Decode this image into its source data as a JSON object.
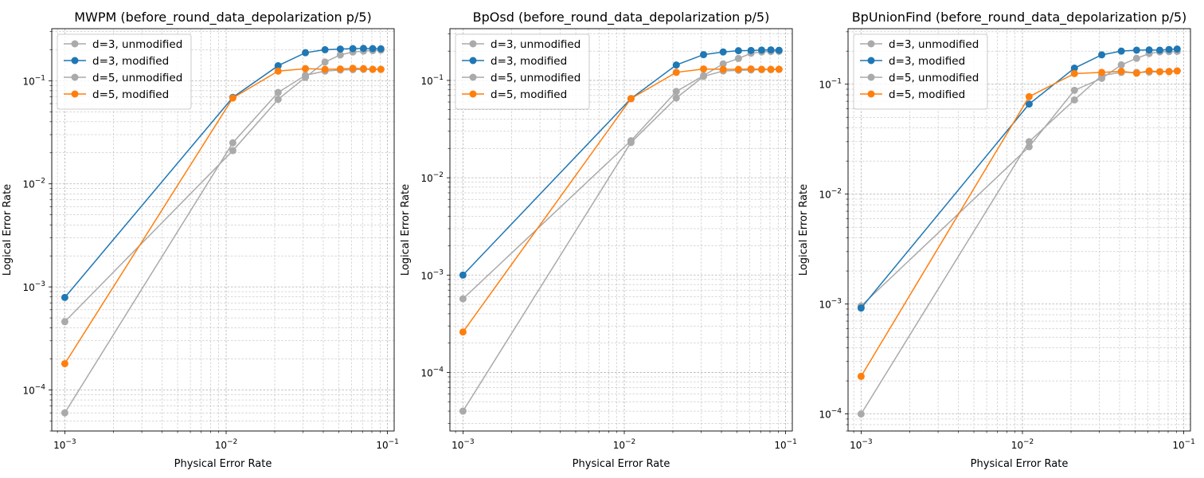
{
  "chart_data": [
    {
      "type": "line",
      "title": "MWPM (before_round_data_depolarization p/5)",
      "xlabel": "Physical Error Rate",
      "ylabel": "Logical Error Rate",
      "xscale": "log",
      "yscale": "log",
      "xlim": [
        0.00083,
        0.11
      ],
      "ylim": [
        4e-05,
        0.32
      ],
      "grid": "major and minor, dashed",
      "legend": "upper-left",
      "xticks": [
        {
          "value": 0.001,
          "base": "10",
          "exp": "−3"
        },
        {
          "value": 0.01,
          "base": "10",
          "exp": "−2"
        },
        {
          "value": 0.1,
          "base": "10",
          "exp": "−1"
        }
      ],
      "yticks": [
        {
          "value": 0.0001,
          "base": "10",
          "exp": "−4"
        },
        {
          "value": 0.001,
          "base": "10",
          "exp": "−3"
        },
        {
          "value": 0.01,
          "base": "10",
          "exp": "−2"
        },
        {
          "value": 0.1,
          "base": "10",
          "exp": "−1"
        }
      ],
      "x": [
        0.001,
        0.011,
        0.021,
        0.031,
        0.041,
        0.051,
        0.061,
        0.071,
        0.081,
        0.091
      ],
      "series": [
        {
          "name": "d=3, unmodified",
          "color": "#aaaaaa",
          "values": [
            0.00046,
            0.021,
            0.066,
            0.108,
            0.152,
            0.178,
            0.19,
            0.194,
            0.196,
            0.198
          ]
        },
        {
          "name": "d=3, modified",
          "color": "#1f77b4",
          "values": [
            0.00079,
            0.069,
            0.14,
            0.187,
            0.2,
            0.203,
            0.205,
            0.206,
            0.205,
            0.204
          ]
        },
        {
          "name": "d=5, unmodified",
          "color": "#aaaaaa",
          "values": [
            6e-05,
            0.025,
            0.077,
            0.113,
            0.124,
            0.127,
            0.128,
            0.129,
            0.129,
            0.129
          ]
        },
        {
          "name": "d=5, modified",
          "color": "#ff7f0e",
          "values": [
            0.00018,
            0.068,
            0.124,
            0.131,
            0.129,
            0.13,
            0.132,
            0.131,
            0.129,
            0.129
          ]
        }
      ]
    },
    {
      "type": "line",
      "title": "BpOsd (before_round_data_depolarization p/5)",
      "xlabel": "Physical Error Rate",
      "ylabel": "Logical Error Rate",
      "xscale": "log",
      "yscale": "log",
      "xlim": [
        0.00083,
        0.11
      ],
      "ylim": [
        2.5e-05,
        0.34
      ],
      "grid": "major and minor, dashed",
      "legend": "upper-left",
      "xticks": [
        {
          "value": 0.001,
          "base": "10",
          "exp": "−3"
        },
        {
          "value": 0.01,
          "base": "10",
          "exp": "−2"
        },
        {
          "value": 0.1,
          "base": "10",
          "exp": "−1"
        }
      ],
      "yticks": [
        {
          "value": 0.0001,
          "base": "10",
          "exp": "−4"
        },
        {
          "value": 0.001,
          "base": "10",
          "exp": "−3"
        },
        {
          "value": 0.01,
          "base": "10",
          "exp": "−2"
        },
        {
          "value": 0.1,
          "base": "10",
          "exp": "−1"
        }
      ],
      "x": [
        0.001,
        0.011,
        0.021,
        0.031,
        0.041,
        0.051,
        0.061,
        0.071,
        0.081,
        0.091
      ],
      "series": [
        {
          "name": "d=3, unmodified",
          "color": "#aaaaaa",
          "values": [
            0.00057,
            0.024,
            0.077,
            0.112,
            0.148,
            0.168,
            0.19,
            0.196,
            0.198,
            0.199
          ]
        },
        {
          "name": "d=3, modified",
          "color": "#1f77b4",
          "values": [
            0.001,
            0.065,
            0.144,
            0.184,
            0.196,
            0.202,
            0.203,
            0.205,
            0.206,
            0.204
          ]
        },
        {
          "name": "d=5, unmodified",
          "color": "#aaaaaa",
          "values": [
            4e-05,
            0.023,
            0.066,
            0.11,
            0.125,
            0.127,
            0.128,
            0.129,
            0.129,
            0.13
          ]
        },
        {
          "name": "d=5, modified",
          "color": "#ff7f0e",
          "values": [
            0.00026,
            0.065,
            0.121,
            0.131,
            0.13,
            0.13,
            0.131,
            0.13,
            0.13,
            0.13
          ]
        }
      ]
    },
    {
      "type": "line",
      "title": "BpUnionFind (before_round_data_depolarization p/5)",
      "xlabel": "Physical Error Rate",
      "ylabel": "Logical Error Rate",
      "xscale": "log",
      "yscale": "log",
      "xlim": [
        0.00083,
        0.11
      ],
      "ylim": [
        7e-05,
        0.32
      ],
      "grid": "major and minor, dashed",
      "legend": "upper-left",
      "xticks": [
        {
          "value": 0.001,
          "base": "10",
          "exp": "−3"
        },
        {
          "value": 0.01,
          "base": "10",
          "exp": "−2"
        },
        {
          "value": 0.1,
          "base": "10",
          "exp": "−1"
        }
      ],
      "yticks": [
        {
          "value": 0.0001,
          "base": "10",
          "exp": "−4"
        },
        {
          "value": 0.001,
          "base": "10",
          "exp": "−3"
        },
        {
          "value": 0.01,
          "base": "10",
          "exp": "−2"
        },
        {
          "value": 0.1,
          "base": "10",
          "exp": "−1"
        }
      ],
      "x": [
        0.001,
        0.011,
        0.021,
        0.031,
        0.041,
        0.051,
        0.061,
        0.071,
        0.081,
        0.091
      ],
      "series": [
        {
          "name": "d=3, unmodified",
          "color": "#aaaaaa",
          "values": [
            0.00096,
            0.027,
            0.088,
            0.113,
            0.15,
            0.172,
            0.19,
            0.197,
            0.198,
            0.199
          ]
        },
        {
          "name": "d=3, modified",
          "color": "#1f77b4",
          "values": [
            0.00092,
            0.066,
            0.14,
            0.185,
            0.2,
            0.204,
            0.205,
            0.204,
            0.207,
            0.209
          ]
        },
        {
          "name": "d=5, unmodified",
          "color": "#aaaaaa",
          "values": [
            0.0001,
            0.03,
            0.072,
            0.12,
            0.128,
            0.128,
            0.129,
            0.13,
            0.131,
            0.132
          ]
        },
        {
          "name": "d=5, modified",
          "color": "#ff7f0e",
          "values": [
            0.00022,
            0.077,
            0.125,
            0.128,
            0.131,
            0.126,
            0.132,
            0.13,
            0.13,
            0.132
          ]
        }
      ]
    }
  ]
}
